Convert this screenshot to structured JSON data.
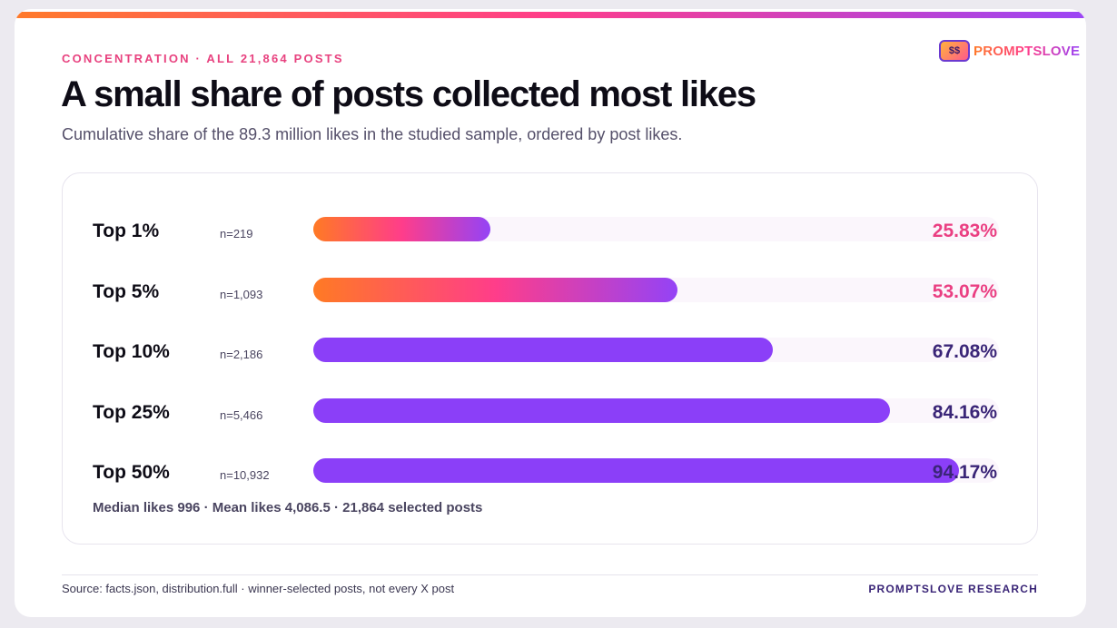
{
  "eyebrow": "CONCENTRATION · ALL 21,864 POSTS",
  "title": "A small share of posts collected most likes",
  "subtitle": "Cumulative share of the 89.3 million likes in the studied sample, ordered by post likes.",
  "brand": {
    "logo_glyph": "$$",
    "name": "PROMPTSLOVE"
  },
  "colors": {
    "accent_pink": "#ea3f82",
    "accent_purple": "#8b3ff8",
    "value_dark": "#3a2577",
    "gradient": [
      "#ff7a24",
      "#ff3d8a",
      "#9443f6"
    ]
  },
  "chart_data": {
    "type": "bar",
    "orientation": "horizontal",
    "categories": [
      "Top 1%",
      "Top 5%",
      "Top 10%",
      "Top 25%",
      "Top 50%"
    ],
    "counts": [
      "n=219",
      "n=1,093",
      "n=2,186",
      "n=5,466",
      "n=10,932"
    ],
    "values": [
      25.83,
      53.07,
      67.08,
      84.16,
      94.17
    ],
    "value_labels": [
      "25.83%",
      "53.07%",
      "67.08%",
      "84.16%",
      "94.17%"
    ],
    "highlighted": [
      true,
      true,
      false,
      false,
      false
    ],
    "xlim": [
      0,
      100
    ],
    "grid": false,
    "legend": "none"
  },
  "summary": "Median likes 996 · Mean likes 4,086.5 · 21,864 selected posts",
  "footer": {
    "source": "Source: facts.json, distribution.full · winner-selected posts, not every X post",
    "credit": "PROMPTSLOVE RESEARCH"
  }
}
